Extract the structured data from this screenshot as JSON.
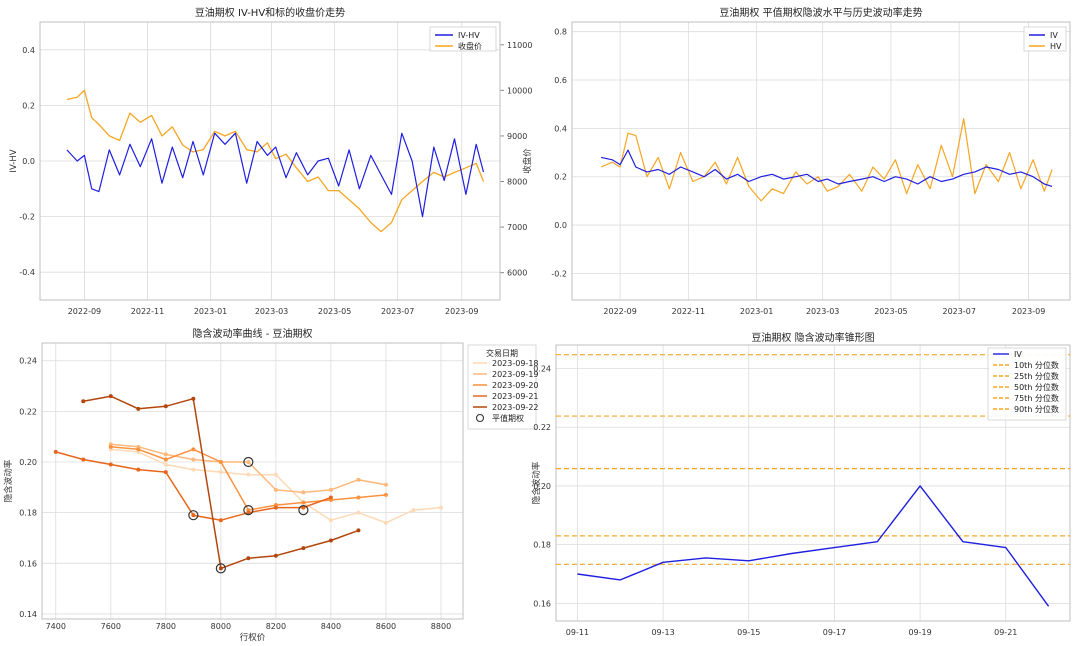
{
  "chart_data": [
    {
      "type": "line",
      "title": "豆油期权 IV-HV和标的收盘价走势",
      "xlabel": "",
      "ylabel": "IV-HV",
      "y2label": "收盘价",
      "x_ticks": [
        "2022-09",
        "2022-11",
        "2023-01",
        "2023-03",
        "2023-05",
        "2023-07",
        "2023-09"
      ],
      "y_ticks": [
        "-0.4",
        "-0.2",
        "0.0",
        "0.2",
        "0.4"
      ],
      "y2_ticks": [
        "6000",
        "7000",
        "8000",
        "9000",
        "10000",
        "11000"
      ],
      "ylim": [
        -0.5,
        0.5
      ],
      "y2lim": [
        5400,
        11500
      ],
      "legend": [
        "IV-HV",
        "收盘价"
      ],
      "legend_position": "top-right",
      "colors": {
        "iv_hv": "#1f1fe0",
        "close": "#f5a623",
        "left_axis": "#1f77b4",
        "right_axis": "#d62728"
      },
      "series": [
        {
          "name": "IV-HV",
          "x": [
            "2022-08-15",
            "2022-08-25",
            "2022-09-01",
            "2022-09-08",
            "2022-09-15",
            "2022-09-25",
            "2022-10-05",
            "2022-10-15",
            "2022-10-25",
            "2022-11-05",
            "2022-11-15",
            "2022-11-25",
            "2022-12-05",
            "2022-12-15",
            "2022-12-25",
            "2023-01-05",
            "2023-01-15",
            "2023-01-25",
            "2023-02-05",
            "2023-02-15",
            "2023-02-25",
            "2023-03-05",
            "2023-03-15",
            "2023-03-25",
            "2023-04-05",
            "2023-04-15",
            "2023-04-25",
            "2023-05-05",
            "2023-05-15",
            "2023-05-25",
            "2023-06-05",
            "2023-06-15",
            "2023-06-25",
            "2023-07-05",
            "2023-07-15",
            "2023-07-25",
            "2023-08-05",
            "2023-08-15",
            "2023-08-25",
            "2023-09-05",
            "2023-09-15",
            "2023-09-22"
          ],
          "values": [
            0.04,
            0.0,
            0.02,
            -0.1,
            -0.11,
            0.04,
            -0.05,
            0.06,
            -0.02,
            0.08,
            -0.08,
            0.05,
            -0.06,
            0.07,
            -0.05,
            0.1,
            0.06,
            0.1,
            -0.08,
            0.07,
            0.02,
            0.05,
            -0.06,
            0.03,
            -0.05,
            0.0,
            0.01,
            -0.09,
            0.04,
            -0.1,
            0.02,
            -0.05,
            -0.12,
            0.1,
            0.0,
            -0.2,
            0.05,
            -0.07,
            0.08,
            -0.12,
            0.06,
            -0.04
          ]
        },
        {
          "name": "收盘价",
          "x": [
            "2022-08-15",
            "2022-08-25",
            "2022-09-01",
            "2022-09-08",
            "2022-09-15",
            "2022-09-25",
            "2022-10-05",
            "2022-10-15",
            "2022-10-25",
            "2022-11-05",
            "2022-11-15",
            "2022-11-25",
            "2022-12-05",
            "2022-12-15",
            "2022-12-25",
            "2023-01-05",
            "2023-01-15",
            "2023-01-25",
            "2023-02-05",
            "2023-02-15",
            "2023-02-25",
            "2023-03-05",
            "2023-03-15",
            "2023-03-25",
            "2023-04-05",
            "2023-04-15",
            "2023-04-25",
            "2023-05-05",
            "2023-05-15",
            "2023-05-25",
            "2023-06-05",
            "2023-06-15",
            "2023-06-25",
            "2023-07-05",
            "2023-07-15",
            "2023-07-25",
            "2023-08-05",
            "2023-08-15",
            "2023-08-25",
            "2023-09-05",
            "2023-09-15",
            "2023-09-22"
          ],
          "values": [
            9800,
            9850,
            10000,
            9400,
            9250,
            9000,
            8900,
            9500,
            9300,
            9450,
            9000,
            9200,
            8800,
            8650,
            8700,
            9100,
            9000,
            9100,
            8700,
            8650,
            8850,
            8500,
            8600,
            8300,
            8000,
            8100,
            7800,
            7800,
            7600,
            7400,
            7100,
            6900,
            7100,
            7600,
            7800,
            8000,
            8200,
            8100,
            8200,
            8300,
            8400,
            8000
          ]
        }
      ]
    },
    {
      "type": "line",
      "title": "豆油期权 平值期权隐波水平与历史波动率走势",
      "xlabel": "",
      "ylabel": "",
      "x_ticks": [
        "2022-09",
        "2022-11",
        "2023-01",
        "2023-03",
        "2023-05",
        "2023-07",
        "2023-09"
      ],
      "y_ticks": [
        "-0.2",
        "0.0",
        "0.2",
        "0.4",
        "0.6",
        "0.8"
      ],
      "ylim": [
        -0.31,
        0.84
      ],
      "legend": [
        "IV",
        "HV"
      ],
      "legend_position": "top-right",
      "colors": {
        "iv": "#1f1fe0",
        "hv": "#f5a623"
      },
      "series": [
        {
          "name": "IV",
          "x": [
            "2022-08-15",
            "2022-08-25",
            "2022-09-01",
            "2022-09-08",
            "2022-09-15",
            "2022-09-25",
            "2022-10-05",
            "2022-10-15",
            "2022-10-25",
            "2022-11-05",
            "2022-11-15",
            "2022-11-25",
            "2022-12-05",
            "2022-12-15",
            "2022-12-25",
            "2023-01-05",
            "2023-01-15",
            "2023-01-25",
            "2023-02-05",
            "2023-02-15",
            "2023-02-25",
            "2023-03-05",
            "2023-03-15",
            "2023-03-25",
            "2023-04-05",
            "2023-04-15",
            "2023-04-25",
            "2023-05-05",
            "2023-05-15",
            "2023-05-25",
            "2023-06-05",
            "2023-06-15",
            "2023-06-25",
            "2023-07-05",
            "2023-07-15",
            "2023-07-25",
            "2023-08-05",
            "2023-08-15",
            "2023-08-25",
            "2023-09-05",
            "2023-09-15",
            "2023-09-22"
          ],
          "values": [
            0.28,
            0.27,
            0.25,
            0.31,
            0.24,
            0.22,
            0.23,
            0.21,
            0.24,
            0.22,
            0.2,
            0.23,
            0.19,
            0.21,
            0.18,
            0.2,
            0.21,
            0.19,
            0.2,
            0.21,
            0.18,
            0.19,
            0.17,
            0.18,
            0.19,
            0.2,
            0.18,
            0.2,
            0.19,
            0.17,
            0.2,
            0.18,
            0.19,
            0.21,
            0.22,
            0.24,
            0.23,
            0.21,
            0.22,
            0.2,
            0.17,
            0.16
          ]
        },
        {
          "name": "HV",
          "x": [
            "2022-08-15",
            "2022-08-25",
            "2022-09-01",
            "2022-09-08",
            "2022-09-15",
            "2022-09-25",
            "2022-10-05",
            "2022-10-15",
            "2022-10-25",
            "2022-11-05",
            "2022-11-15",
            "2022-11-25",
            "2022-12-05",
            "2022-12-15",
            "2022-12-25",
            "2023-01-05",
            "2023-01-15",
            "2023-01-25",
            "2023-02-05",
            "2023-02-15",
            "2023-02-25",
            "2023-03-05",
            "2023-03-15",
            "2023-03-25",
            "2023-04-05",
            "2023-04-15",
            "2023-04-25",
            "2023-05-05",
            "2023-05-15",
            "2023-05-25",
            "2023-06-05",
            "2023-06-15",
            "2023-06-25",
            "2023-07-05",
            "2023-07-15",
            "2023-07-25",
            "2023-08-05",
            "2023-08-15",
            "2023-08-25",
            "2023-09-05",
            "2023-09-15",
            "2023-09-22"
          ],
          "values": [
            0.24,
            0.26,
            0.24,
            0.38,
            0.37,
            0.2,
            0.28,
            0.15,
            0.3,
            0.18,
            0.2,
            0.26,
            0.17,
            0.28,
            0.16,
            0.1,
            0.15,
            0.13,
            0.22,
            0.17,
            0.2,
            0.14,
            0.16,
            0.21,
            0.14,
            0.24,
            0.19,
            0.27,
            0.13,
            0.25,
            0.15,
            0.33,
            0.2,
            0.44,
            0.13,
            0.25,
            0.18,
            0.3,
            0.15,
            0.27,
            0.14,
            0.23
          ]
        }
      ]
    },
    {
      "type": "line",
      "title": "隐含波动率曲线 - 豆油期权",
      "xlabel": "行权价",
      "ylabel": "隐含波动率",
      "x_ticks": [
        "7400",
        "7600",
        "7800",
        "8000",
        "8200",
        "8400",
        "8600",
        "8800"
      ],
      "y_ticks": [
        "0.14",
        "0.16",
        "0.18",
        "0.20",
        "0.22",
        "0.24"
      ],
      "xlim": [
        7350,
        8880
      ],
      "ylim": [
        0.138,
        0.247
      ],
      "legend_title": "交易日期",
      "legend": [
        "2023-09-18",
        "2023-09-19",
        "2023-09-20",
        "2023-09-21",
        "2023-09-22",
        "平值期权"
      ],
      "legend_position": "top-right",
      "series": [
        {
          "name": "2023-09-18",
          "color": "#fdd9b5",
          "strikes": [
            7600,
            7700,
            7800,
            7900,
            8000,
            8100,
            8200,
            8300,
            8400,
            8500,
            8600,
            8700,
            8800
          ],
          "values": [
            0.205,
            0.204,
            0.199,
            0.197,
            0.196,
            0.195,
            0.195,
            0.184,
            0.177,
            0.18,
            0.176,
            0.181,
            0.182
          ]
        },
        {
          "name": "2023-09-19",
          "color": "#fdb97a",
          "strikes": [
            7600,
            7700,
            7800,
            7900,
            8000,
            8100,
            8200,
            8300,
            8400,
            8500,
            8600
          ],
          "values": [
            0.207,
            0.206,
            0.203,
            0.201,
            0.2,
            0.2,
            0.189,
            0.188,
            0.189,
            0.193,
            0.191
          ]
        },
        {
          "name": "2023-09-20",
          "color": "#fc9140",
          "strikes": [
            7600,
            7700,
            7800,
            7900,
            8000,
            8100,
            8200,
            8300,
            8400,
            8500,
            8600
          ],
          "values": [
            0.206,
            0.205,
            0.201,
            0.205,
            0.2,
            0.181,
            0.183,
            0.184,
            0.185,
            0.186,
            0.187
          ]
        },
        {
          "name": "2023-09-21",
          "color": "#e8661a",
          "strikes": [
            7400,
            7500,
            7600,
            7700,
            7800,
            7900,
            8000,
            8100,
            8200,
            8300,
            8400
          ],
          "values": [
            0.204,
            0.201,
            0.199,
            0.197,
            0.196,
            0.179,
            0.177,
            0.18,
            0.182,
            0.182,
            0.186
          ]
        },
        {
          "name": "2023-09-22",
          "color": "#b3470b",
          "strikes": [
            7500,
            7600,
            7700,
            7800,
            7900,
            8000,
            8100,
            8200,
            8300,
            8400,
            8500
          ],
          "values": [
            0.224,
            0.226,
            0.221,
            0.222,
            0.225,
            0.158,
            0.162,
            0.163,
            0.166,
            0.169,
            0.173
          ]
        }
      ],
      "atm_points": [
        {
          "strike": 7900,
          "value": 0.179
        },
        {
          "strike": 8000,
          "value": 0.158
        },
        {
          "strike": 8100,
          "value": 0.2
        },
        {
          "strike": 8100,
          "value": 0.181
        },
        {
          "strike": 8300,
          "value": 0.181
        }
      ]
    },
    {
      "type": "line",
      "title": "豆油期权 隐含波动率锥形图",
      "xlabel": "",
      "ylabel": "隐含波动率",
      "x_ticks": [
        "09-11",
        "09-13",
        "09-15",
        "09-17",
        "09-19",
        "09-21"
      ],
      "y_ticks": [
        "0.16",
        "0.18",
        "0.20",
        "0.22",
        "0.24"
      ],
      "ylim": [
        0.154,
        0.248
      ],
      "legend": [
        "IV",
        "10th 分位数",
        "25th 分位数",
        "50th 分位数",
        "75th 分位数",
        "90th 分位数"
      ],
      "legend_position": "top-right",
      "colors": {
        "iv": "#1f1fe0",
        "quantile": "#f5a623"
      },
      "series": [
        {
          "name": "IV",
          "x": [
            "09-11",
            "09-12",
            "09-13",
            "09-14",
            "09-15",
            "09-16",
            "09-17",
            "09-18",
            "09-19",
            "09-20",
            "09-21",
            "09-22"
          ],
          "values": [
            0.17,
            0.168,
            0.174,
            0.1755,
            0.1745,
            0.177,
            0.179,
            0.181,
            0.2,
            0.181,
            0.179,
            0.159
          ]
        }
      ],
      "quantiles": [
        {
          "name": "10th 分位数",
          "value": 0.1733
        },
        {
          "name": "25th 分位数",
          "value": 0.183
        },
        {
          "name": "50th 分位数",
          "value": 0.2059
        },
        {
          "name": "75th 分位数",
          "value": 0.2238
        },
        {
          "name": "90th 分位数",
          "value": 0.2447
        }
      ]
    }
  ]
}
